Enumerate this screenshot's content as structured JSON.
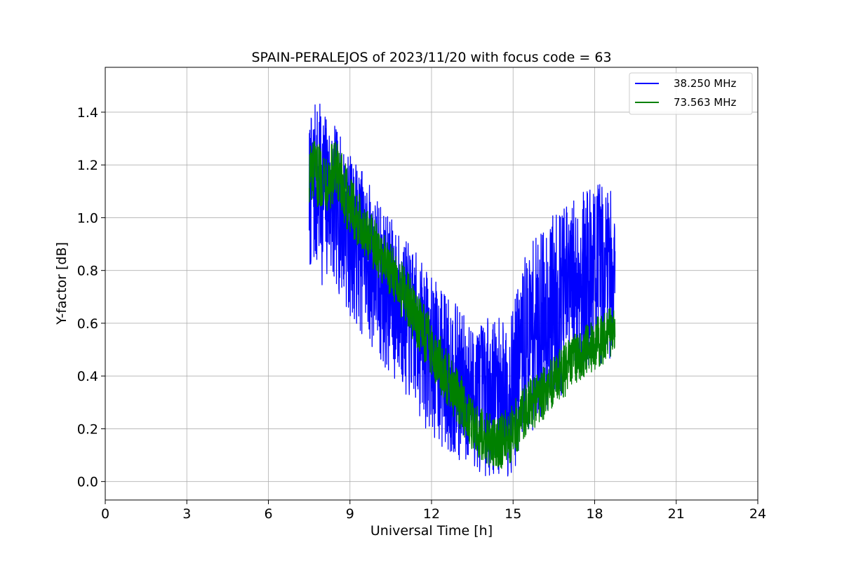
{
  "chart_data": {
    "type": "line",
    "title": "SPAIN-PERALEJOS of 2023/11/20 with focus code = 63",
    "xlabel": "Universal Time [h]",
    "ylabel": "Y-factor [dB]",
    "xlim": [
      0,
      24
    ],
    "ylim": [
      -0.07,
      1.57
    ],
    "xticks": [
      0,
      3,
      6,
      9,
      12,
      15,
      18,
      21,
      24
    ],
    "yticks": [
      0.0,
      0.2,
      0.4,
      0.6,
      0.8,
      1.0,
      1.2,
      1.4
    ],
    "xtick_labels": [
      "0",
      "3",
      "6",
      "9",
      "12",
      "15",
      "18",
      "21",
      "24"
    ],
    "ytick_labels": [
      "0.0",
      "0.2",
      "0.4",
      "0.6",
      "0.8",
      "1.0",
      "1.2",
      "1.4"
    ],
    "grid": true,
    "legend_position": "top-right",
    "series": [
      {
        "name": "38.250 MHz",
        "color": "#0000ff",
        "envelope": [
          {
            "x": 7.5,
            "low": 0.78,
            "high": 1.36
          },
          {
            "x": 7.75,
            "low": 0.76,
            "high": 1.45
          },
          {
            "x": 8.0,
            "low": 0.74,
            "high": 1.42
          },
          {
            "x": 8.5,
            "low": 0.72,
            "high": 1.34
          },
          {
            "x": 9.0,
            "low": 0.62,
            "high": 1.24
          },
          {
            "x": 9.5,
            "low": 0.55,
            "high": 1.18
          },
          {
            "x": 10.0,
            "low": 0.46,
            "high": 1.08
          },
          {
            "x": 10.5,
            "low": 0.38,
            "high": 1.0
          },
          {
            "x": 11.0,
            "low": 0.32,
            "high": 0.92
          },
          {
            "x": 11.5,
            "low": 0.24,
            "high": 0.86
          },
          {
            "x": 12.0,
            "low": 0.17,
            "high": 0.78
          },
          {
            "x": 12.5,
            "low": 0.1,
            "high": 0.72
          },
          {
            "x": 13.0,
            "low": 0.06,
            "high": 0.66
          },
          {
            "x": 13.5,
            "low": 0.04,
            "high": 0.6
          },
          {
            "x": 14.0,
            "low": 0.02,
            "high": 0.62
          },
          {
            "x": 14.5,
            "low": 0.02,
            "high": 0.62
          },
          {
            "x": 15.0,
            "low": 0.02,
            "high": 0.66
          },
          {
            "x": 15.5,
            "low": 0.15,
            "high": 0.88
          },
          {
            "x": 16.0,
            "low": 0.22,
            "high": 0.95
          },
          {
            "x": 16.5,
            "low": 0.28,
            "high": 1.02
          },
          {
            "x": 17.0,
            "low": 0.33,
            "high": 1.06
          },
          {
            "x": 17.5,
            "low": 0.38,
            "high": 1.1
          },
          {
            "x": 18.0,
            "low": 0.42,
            "high": 1.14
          },
          {
            "x": 18.5,
            "low": 0.46,
            "high": 1.14
          },
          {
            "x": 18.75,
            "low": 0.48,
            "high": 1.08
          }
        ]
      },
      {
        "name": "73.563 MHz",
        "color": "#008000",
        "envelope": [
          {
            "x": 7.5,
            "low": 1.04,
            "high": 1.3
          },
          {
            "x": 8.0,
            "low": 1.04,
            "high": 1.28
          },
          {
            "x": 8.5,
            "low": 1.0,
            "high": 1.3
          },
          {
            "x": 9.0,
            "low": 0.94,
            "high": 1.16
          },
          {
            "x": 9.5,
            "low": 0.86,
            "high": 1.06
          },
          {
            "x": 10.0,
            "low": 0.78,
            "high": 0.98
          },
          {
            "x": 10.5,
            "low": 0.7,
            "high": 0.9
          },
          {
            "x": 11.0,
            "low": 0.6,
            "high": 0.82
          },
          {
            "x": 11.5,
            "low": 0.5,
            "high": 0.72
          },
          {
            "x": 12.0,
            "low": 0.4,
            "high": 0.62
          },
          {
            "x": 12.5,
            "low": 0.3,
            "high": 0.52
          },
          {
            "x": 13.0,
            "low": 0.2,
            "high": 0.42
          },
          {
            "x": 13.5,
            "low": 0.12,
            "high": 0.32
          },
          {
            "x": 14.0,
            "low": 0.06,
            "high": 0.26
          },
          {
            "x": 14.5,
            "low": 0.04,
            "high": 0.26
          },
          {
            "x": 15.0,
            "low": 0.08,
            "high": 0.3
          },
          {
            "x": 15.5,
            "low": 0.18,
            "high": 0.38
          },
          {
            "x": 16.0,
            "low": 0.22,
            "high": 0.42
          },
          {
            "x": 16.5,
            "low": 0.28,
            "high": 0.48
          },
          {
            "x": 17.0,
            "low": 0.33,
            "high": 0.54
          },
          {
            "x": 17.5,
            "low": 0.38,
            "high": 0.58
          },
          {
            "x": 18.0,
            "low": 0.42,
            "high": 0.62
          },
          {
            "x": 18.5,
            "low": 0.46,
            "high": 0.66
          },
          {
            "x": 18.75,
            "low": 0.5,
            "high": 0.7
          }
        ]
      }
    ]
  }
}
